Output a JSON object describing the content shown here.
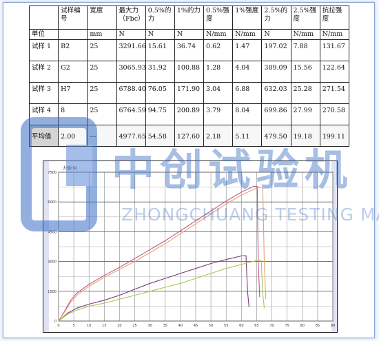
{
  "table": {
    "headers": [
      "",
      "试样编号",
      "宽度",
      "最大力（Fbc）",
      "0.5%的力",
      "1%的力",
      "0.5%强度",
      "1%强度",
      "2.5%的力",
      "2.5%强度",
      "抗拉强度"
    ],
    "units": [
      "单位",
      "",
      "mm",
      "N",
      "N",
      "N",
      "N/mm",
      "N/mm",
      "N",
      "N/mm",
      "N/mm"
    ],
    "rows": [
      [
        "试样 1",
        "B2",
        "25",
        "3291.66",
        "15.61",
        "36.74",
        "0.62",
        "1.47",
        "197.02",
        "7.88",
        "131.67"
      ],
      [
        "试样 2",
        "G2",
        "25",
        "3065.93",
        "31.92",
        "100.88",
        "1.28",
        "4.04",
        "389.09",
        "15.56",
        "122.64"
      ],
      [
        "试样 3",
        "H7",
        "25",
        "6788.40",
        "76.05",
        "171.90",
        "3.04",
        "6.88",
        "632.03",
        "25.28",
        "271.54"
      ],
      [
        "试样 4",
        "8",
        "25",
        "6764.59",
        "94.75",
        "200.89",
        "3.79",
        "8.04",
        "699.86",
        "27.99",
        "270.58"
      ]
    ],
    "average": [
      "平均值",
      "2.00",
      "---",
      "4977.65",
      "54.58",
      "127.60",
      "2.18",
      "5.11",
      "479.50",
      "19.18",
      "199.11"
    ]
  },
  "watermark": {
    "cn": "中创试验机",
    "en": "ZHONGCHUANG TESTING MACHINE",
    "color": "#3b6fc6"
  },
  "chart_data": {
    "type": "line",
    "title": "",
    "ylabel": "",
    "xlabel": "",
    "y_unit_label": "力值(N)",
    "xlim": [
      0,
      90
    ],
    "ylim": [
      0,
      7500
    ],
    "x_ticks": [
      "0",
      "5",
      "10",
      "15",
      "20",
      "25",
      "30",
      "35",
      "40",
      "45",
      "50",
      "55",
      "60",
      "65",
      "70",
      "75",
      "80",
      "85",
      "90"
    ],
    "y_ticks": [
      "0",
      "1500",
      "3000",
      "4500",
      "6000",
      "7500"
    ],
    "series": [
      {
        "color": "#c0508a",
        "x": [
          0,
          2,
          4,
          6,
          10,
          15,
          20,
          25,
          30,
          35,
          40,
          45,
          50,
          55,
          60,
          64,
          65.2,
          65.5,
          66
        ],
        "y": [
          0,
          500,
          1050,
          1400,
          1850,
          2300,
          2700,
          3150,
          3600,
          4050,
          4550,
          5050,
          5550,
          6050,
          6500,
          6788,
          6788,
          3000,
          1200
        ]
      },
      {
        "color": "#e8a070",
        "x": [
          0,
          2,
          4,
          6,
          10,
          15,
          20,
          25,
          30,
          35,
          40,
          45,
          50,
          55,
          60,
          65,
          67,
          67.5,
          68
        ],
        "y": [
          0,
          450,
          950,
          1300,
          1750,
          2200,
          2600,
          3000,
          3450,
          3900,
          4400,
          4900,
          5400,
          5900,
          6350,
          6700,
          6765,
          3000,
          1100
        ]
      },
      {
        "color": "#7a3a78",
        "x": [
          0,
          3,
          6,
          10,
          15,
          20,
          25,
          30,
          35,
          40,
          45,
          50,
          55,
          60,
          61.5,
          62,
          62.5
        ],
        "y": [
          0,
          400,
          650,
          850,
          1050,
          1300,
          1600,
          1900,
          2150,
          2400,
          2650,
          2900,
          3100,
          3280,
          3292,
          1500,
          700
        ]
      },
      {
        "color": "#a8c850",
        "x": [
          0,
          3,
          6,
          10,
          15,
          20,
          25,
          30,
          35,
          40,
          45,
          50,
          55,
          60,
          65,
          66.5,
          67,
          67.5
        ],
        "y": [
          0,
          350,
          550,
          750,
          900,
          1100,
          1300,
          1500,
          1700,
          1900,
          2150,
          2400,
          2650,
          2850,
          3050,
          3066,
          1400,
          650
        ]
      }
    ]
  }
}
